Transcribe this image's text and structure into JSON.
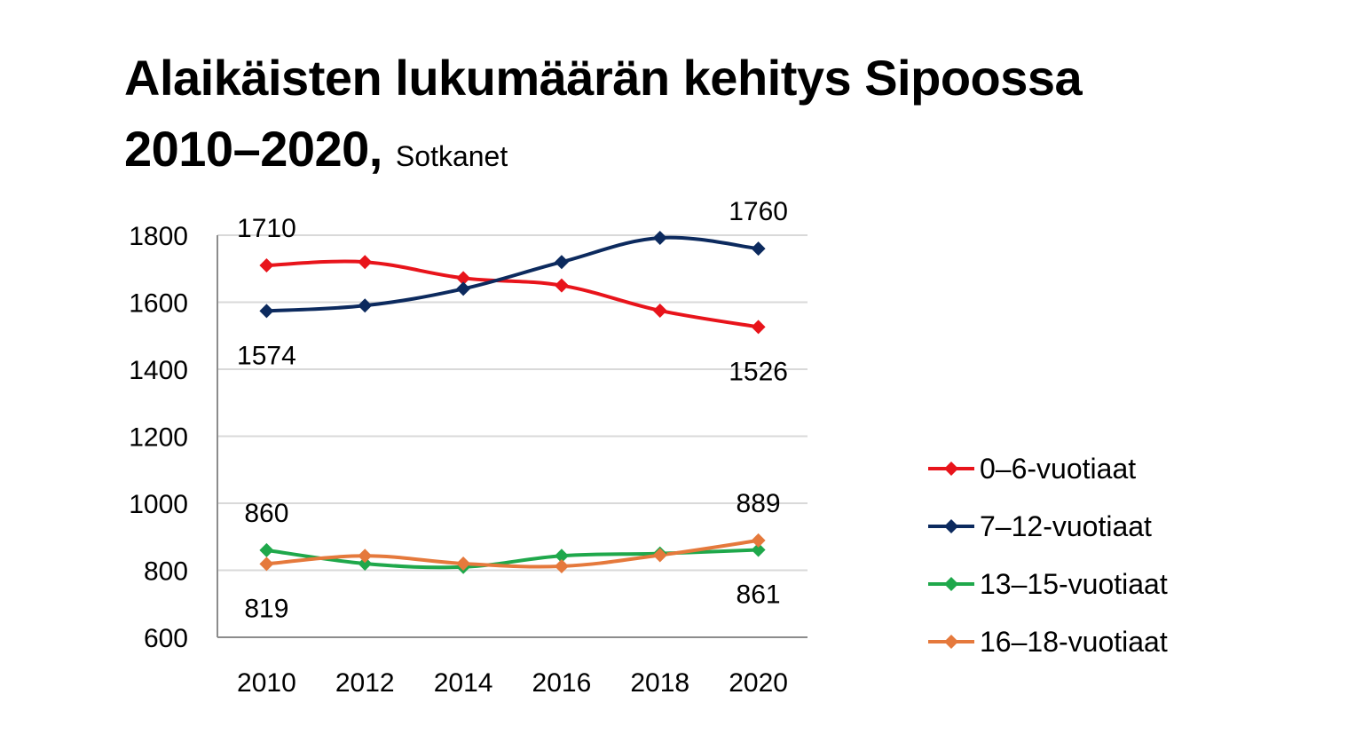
{
  "title": {
    "line1": "Alaikäisten lukumäärän kehitys Sipoossa",
    "line2": "2010–2020,",
    "source": "Sotkanet"
  },
  "chart_data": {
    "type": "line",
    "categories": [
      "2010",
      "2012",
      "2014",
      "2016",
      "2018",
      "2020"
    ],
    "ylim": [
      600,
      1800
    ],
    "yticks": [
      600,
      800,
      1000,
      1200,
      1400,
      1600,
      1800
    ],
    "grid": true,
    "legend_position": "right",
    "series": [
      {
        "name": "0–6-vuotiaat",
        "color": "#e8141b",
        "values": [
          1710,
          1720,
          1672,
          1650,
          1575,
          1526
        ]
      },
      {
        "name": "7–12-vuotiaat",
        "color": "#0c2a5e",
        "values": [
          1574,
          1590,
          1640,
          1720,
          1792,
          1760
        ]
      },
      {
        "name": "13–15-vuotiaat",
        "color": "#1fa84b",
        "values": [
          860,
          820,
          810,
          843,
          850,
          861
        ]
      },
      {
        "name": "16–18-vuotiaat",
        "color": "#e5793c",
        "values": [
          819,
          843,
          820,
          812,
          845,
          889
        ]
      }
    ],
    "data_labels": [
      {
        "series": 0,
        "index": 0,
        "text": "1710"
      },
      {
        "series": 0,
        "index": 5,
        "text": "1526"
      },
      {
        "series": 1,
        "index": 0,
        "text": "1574"
      },
      {
        "series": 1,
        "index": 5,
        "text": "1760"
      },
      {
        "series": 2,
        "index": 0,
        "text": "860"
      },
      {
        "series": 2,
        "index": 5,
        "text": "861"
      },
      {
        "series": 3,
        "index": 0,
        "text": "819"
      },
      {
        "series": 3,
        "index": 5,
        "text": "889"
      }
    ]
  }
}
